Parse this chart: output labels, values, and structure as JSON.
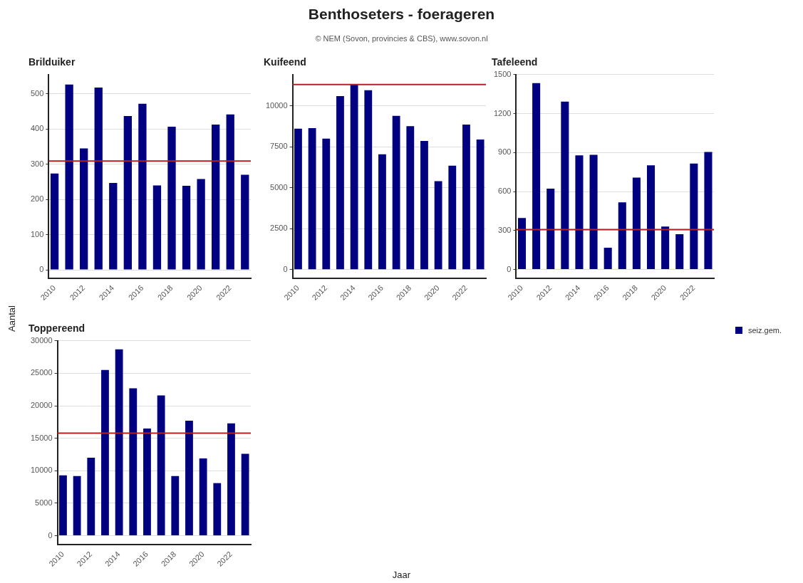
{
  "chart_data": [
    {
      "type": "bar",
      "title": "Brilduiker",
      "annotations": [
        "Benthoseters - foerageren",
        "© NEM (Sovon, provincies & CBS), www.sovon.nl",
        "Jaar"
      ],
      "ylabel": "Aantal",
      "legend": "right",
      "x": [
        2010,
        2011,
        2012,
        2013,
        2014,
        2015,
        2016,
        2017,
        2018,
        2019,
        2020,
        2021,
        2022,
        2023
      ],
      "xlim": [
        2009.6,
        2023.4
      ],
      "xticks": [
        2010,
        2012,
        2014,
        2016,
        2018,
        2020,
        2022
      ],
      "ylim": [
        -25,
        555
      ],
      "yticks": [
        0,
        100,
        200,
        300,
        400,
        500
      ],
      "grid": "y",
      "series": [
        {
          "name": "seiz.gem.",
          "color": "#000080",
          "values": [
            274,
            527,
            345,
            518,
            247,
            437,
            472,
            240,
            407,
            239,
            258,
            413,
            442,
            270
          ]
        }
      ],
      "ref_lines": [
        {
          "axis": "y",
          "value": 309,
          "color": "#b22222"
        }
      ]
    },
    {
      "type": "bar",
      "title": "Kuifeend",
      "x": [
        2010,
        2011,
        2012,
        2013,
        2014,
        2015,
        2016,
        2017,
        2018,
        2019,
        2020,
        2021,
        2022,
        2023
      ],
      "xlim": [
        2009.6,
        2023.4
      ],
      "xticks": [
        2010,
        2012,
        2014,
        2016,
        2018,
        2020,
        2022
      ],
      "ylim": [
        -550,
        11900
      ],
      "yticks": [
        0,
        2500,
        5000,
        7500,
        10000
      ],
      "grid": "y",
      "series": [
        {
          "color": "#000080",
          "values": [
            8600,
            8630,
            7990,
            10590,
            11320,
            10950,
            7040,
            9380,
            8750,
            7850,
            5400,
            6340,
            8850,
            7940
          ]
        }
      ],
      "ref_lines": [
        {
          "axis": "y",
          "value": 11290,
          "color": "#b22222"
        }
      ]
    },
    {
      "type": "bar",
      "title": "Tafeleend",
      "x": [
        2010,
        2011,
        2012,
        2013,
        2014,
        2015,
        2016,
        2017,
        2018,
        2019,
        2020,
        2021,
        2022,
        2023
      ],
      "xlim": [
        2009.6,
        2023.4
      ],
      "xticks": [
        2010,
        2012,
        2014,
        2016,
        2018,
        2020,
        2022
      ],
      "ylim": [
        -70,
        1500
      ],
      "yticks": [
        0,
        300,
        600,
        900,
        1200,
        1500
      ],
      "grid": "y",
      "series": [
        {
          "color": "#000080",
          "values": [
            396,
            1435,
            622,
            1292,
            878,
            882,
            168,
            517,
            707,
            802,
            331,
            271,
            816,
            905
          ]
        }
      ],
      "ref_lines": [
        {
          "axis": "y",
          "value": 307,
          "color": "#b22222"
        }
      ]
    },
    {
      "type": "bar",
      "title": "Toppereend",
      "x": [
        2010,
        2011,
        2012,
        2013,
        2014,
        2015,
        2016,
        2017,
        2018,
        2019,
        2020,
        2021,
        2022,
        2023
      ],
      "xlim": [
        2009.6,
        2023.4
      ],
      "xticks": [
        2010,
        2012,
        2014,
        2016,
        2018,
        2020,
        2022
      ],
      "ylim": [
        -1400,
        30000
      ],
      "yticks": [
        0,
        5000,
        10000,
        15000,
        20000,
        25000,
        30000
      ],
      "grid": "y",
      "series": [
        {
          "color": "#000080",
          "values": [
            9300,
            9200,
            12000,
            25500,
            28700,
            22700,
            16500,
            21600,
            9200,
            17700,
            11900,
            8100,
            17300,
            12600
          ]
        }
      ],
      "ref_lines": [
        {
          "axis": "y",
          "value": 15800,
          "color": "#b22222"
        }
      ]
    }
  ]
}
